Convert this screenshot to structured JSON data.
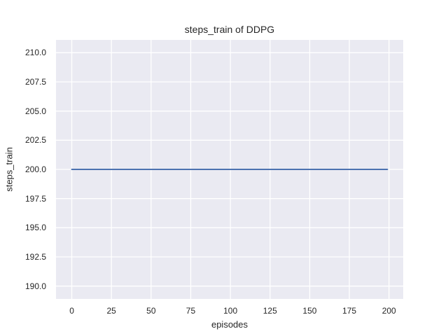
{
  "chart_data": {
    "type": "line",
    "title": "steps_train of DDPG",
    "xlabel": "episodes",
    "ylabel": "steps_train",
    "xlim": [
      -9.95,
      208.95
    ],
    "ylim": [
      188.9,
      211.1
    ],
    "grid": true,
    "legend": null,
    "plot_background": "#eaeaf2",
    "grid_color": "#ffffff",
    "text_color": "#262626",
    "xticks": {
      "values": [
        0,
        25,
        50,
        75,
        100,
        125,
        150,
        175,
        200
      ],
      "labels": [
        "0",
        "25",
        "50",
        "75",
        "100",
        "125",
        "150",
        "175",
        "200"
      ]
    },
    "yticks": {
      "values": [
        190.0,
        192.5,
        195.0,
        197.5,
        200.0,
        202.5,
        205.0,
        207.5,
        210.0
      ],
      "labels": [
        "190.0",
        "192.5",
        "195.0",
        "197.5",
        "200.0",
        "202.5",
        "205.0",
        "207.5",
        "210.0"
      ]
    },
    "series": [
      {
        "name": "steps_train",
        "color": "#4c72b0",
        "x": [
          0,
          199
        ],
        "y": [
          200,
          200
        ]
      }
    ]
  }
}
